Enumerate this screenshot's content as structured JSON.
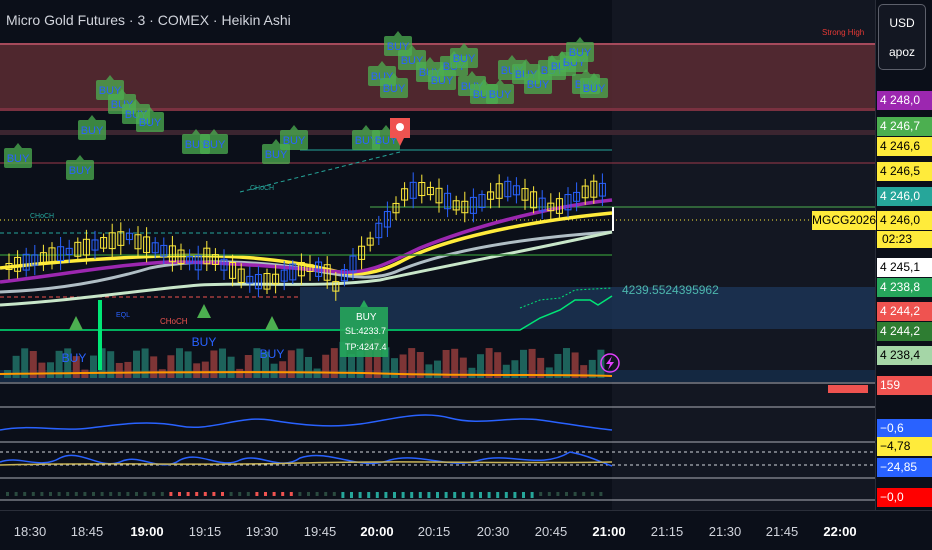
{
  "symbol": {
    "title": "Micro Gold Futures · 3 · COMEX · Heikin Ashi"
  },
  "currency": {
    "code": "USD",
    "sub": "apoz"
  },
  "ticker_label": "MGCG2026",
  "countdown": "02:23",
  "strong_high_label": "Strong High",
  "oscillator_value": "4239.5524395962",
  "price_tags": [
    {
      "value": "4 248,0",
      "bg": "#9c27b0",
      "fg": "#ffffff"
    },
    {
      "value": "4 246,7",
      "bg": "#4caf50",
      "fg": "#ffffff"
    },
    {
      "value": "4 246,6",
      "bg": "#ffeb3b",
      "fg": "#000000"
    },
    {
      "value": "4 246,5",
      "bg": "#ffeb3b",
      "fg": "#000000"
    },
    {
      "value": "4 246,0",
      "bg": "#26a69a",
      "fg": "#ffffff"
    },
    {
      "value": "4 246,0",
      "bg": "#ffeb3b",
      "fg": "#000000"
    },
    {
      "value": "4 245,1",
      "bg": "#ffffff",
      "fg": "#000000"
    },
    {
      "value": "4 238,8",
      "bg": "#26a65b",
      "fg": "#ffffff"
    },
    {
      "value": "4 244,2",
      "bg": "#ef5350",
      "fg": "#ffffff"
    },
    {
      "value": "4 244,2",
      "bg": "#2e7d32",
      "fg": "#ffffff"
    },
    {
      "value": "4 238,4",
      "bg": "#a5d6a7",
      "fg": "#000000"
    },
    {
      "value": "159",
      "bg": "#ef5350",
      "fg": "#ffffff"
    },
    {
      "value": "−0,6",
      "bg": "#2962ff",
      "fg": "#ffffff"
    },
    {
      "value": "−4,78",
      "bg": "#ffeb3b",
      "fg": "#000000"
    },
    {
      "value": "−24,85",
      "bg": "#2962ff",
      "fg": "#ffffff"
    },
    {
      "value": "−0,0",
      "bg": "#ff0000",
      "fg": "#ffffff"
    }
  ],
  "time_labels": [
    {
      "text": "18:30",
      "bold": false
    },
    {
      "text": "18:45",
      "bold": false
    },
    {
      "text": "19:00",
      "bold": true
    },
    {
      "text": "19:15",
      "bold": false
    },
    {
      "text": "19:30",
      "bold": false
    },
    {
      "text": "19:45",
      "bold": false
    },
    {
      "text": "20:00",
      "bold": true
    },
    {
      "text": "20:15",
      "bold": false
    },
    {
      "text": "20:30",
      "bold": false
    },
    {
      "text": "20:45",
      "bold": false
    },
    {
      "text": "21:00",
      "bold": true
    },
    {
      "text": "21:15",
      "bold": false
    },
    {
      "text": "21:30",
      "bold": false
    },
    {
      "text": "21:45",
      "bold": false
    },
    {
      "text": "22:00",
      "bold": true
    }
  ],
  "annotations": {
    "buy": "BUY",
    "choch": "CHoCH",
    "eql": "EQL",
    "trade_buy": "BUY",
    "sl": "SL:4233.7",
    "tp": "TP:4247.4"
  },
  "colors": {
    "up": "#ffeb3b",
    "down": "#2962ff",
    "buy_label": "#4caf50",
    "zone": "#5c2b33"
  }
}
